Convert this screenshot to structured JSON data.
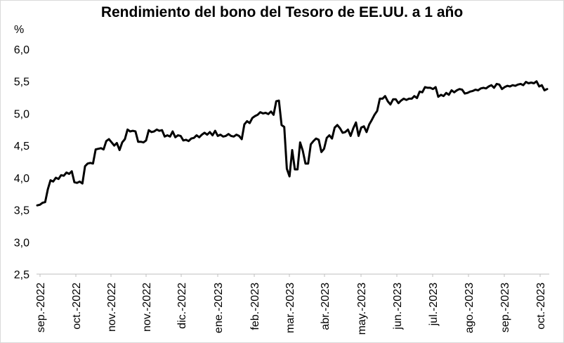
{
  "chart_data": {
    "type": "line",
    "title": "Rendimiento del bono del Tesoro de EE.UU. a 1 año",
    "ylabel": "%",
    "xlabel": "",
    "ylim": [
      2.5,
      6.0
    ],
    "yticks": [
      "6,0",
      "5,5",
      "5,0",
      "4,5",
      "4,0",
      "3,5",
      "3,0",
      "2,5"
    ],
    "ytick_values": [
      6.0,
      5.5,
      5.0,
      4.5,
      4.0,
      3.5,
      3.0,
      2.5
    ],
    "xticks": [
      "sep.-2022",
      "oct.-2022",
      "nov.-2022",
      "nov.-2022",
      "dic.-2022",
      "ene.-2023",
      "feb.-2023",
      "mar.-2023",
      "abr.-2023",
      "may.-2023",
      "jun.-2023",
      "jul.-2023",
      "ago.-2023",
      "sep.-2023",
      "oct.-2023"
    ],
    "grid": false,
    "line_color": "#000000",
    "series": [
      {
        "values": [
          3.57,
          3.58,
          3.61,
          3.62,
          3.82,
          3.96,
          3.94,
          4.0,
          3.98,
          4.04,
          4.03,
          4.08,
          4.06,
          4.1,
          3.93,
          3.92,
          3.94,
          3.91,
          4.18,
          4.22,
          4.23,
          4.22,
          4.44,
          4.45,
          4.46,
          4.44,
          4.57,
          4.6,
          4.55,
          4.5,
          4.54,
          4.43,
          4.55,
          4.6,
          4.75,
          4.72,
          4.73,
          4.72,
          4.56,
          4.56,
          4.55,
          4.58,
          4.74,
          4.71,
          4.72,
          4.75,
          4.73,
          4.74,
          4.64,
          4.66,
          4.64,
          4.72,
          4.63,
          4.66,
          4.65,
          4.58,
          4.59,
          4.57,
          4.61,
          4.62,
          4.66,
          4.63,
          4.67,
          4.7,
          4.67,
          4.71,
          4.66,
          4.73,
          4.65,
          4.67,
          4.64,
          4.65,
          4.68,
          4.65,
          4.64,
          4.67,
          4.65,
          4.6,
          4.83,
          4.88,
          4.85,
          4.93,
          4.96,
          4.98,
          5.02,
          5.0,
          5.01,
          4.99,
          5.03,
          4.98,
          5.19,
          5.2,
          4.82,
          4.79,
          4.14,
          4.02,
          4.43,
          4.13,
          4.13,
          4.55,
          4.42,
          4.22,
          4.22,
          4.52,
          4.57,
          4.61,
          4.59,
          4.4,
          4.45,
          4.62,
          4.66,
          4.61,
          4.78,
          4.82,
          4.77,
          4.7,
          4.71,
          4.75,
          4.65,
          4.77,
          4.86,
          4.65,
          4.78,
          4.8,
          4.71,
          4.83,
          4.9,
          4.98,
          5.04,
          5.23,
          5.23,
          5.27,
          5.19,
          5.14,
          5.22,
          5.22,
          5.16,
          5.2,
          5.23,
          5.21,
          5.23,
          5.23,
          5.27,
          5.24,
          5.34,
          5.33,
          5.41,
          5.4,
          5.4,
          5.38,
          5.41,
          5.26,
          5.29,
          5.27,
          5.32,
          5.29,
          5.36,
          5.33,
          5.36,
          5.38,
          5.37,
          5.31,
          5.32,
          5.34,
          5.35,
          5.37,
          5.36,
          5.39,
          5.4,
          5.39,
          5.42,
          5.44,
          5.4,
          5.46,
          5.45,
          5.38,
          5.41,
          5.43,
          5.42,
          5.44,
          5.43,
          5.45,
          5.46,
          5.44,
          5.49,
          5.47,
          5.48,
          5.47,
          5.5,
          5.42,
          5.44,
          5.36,
          5.38
        ]
      }
    ]
  }
}
